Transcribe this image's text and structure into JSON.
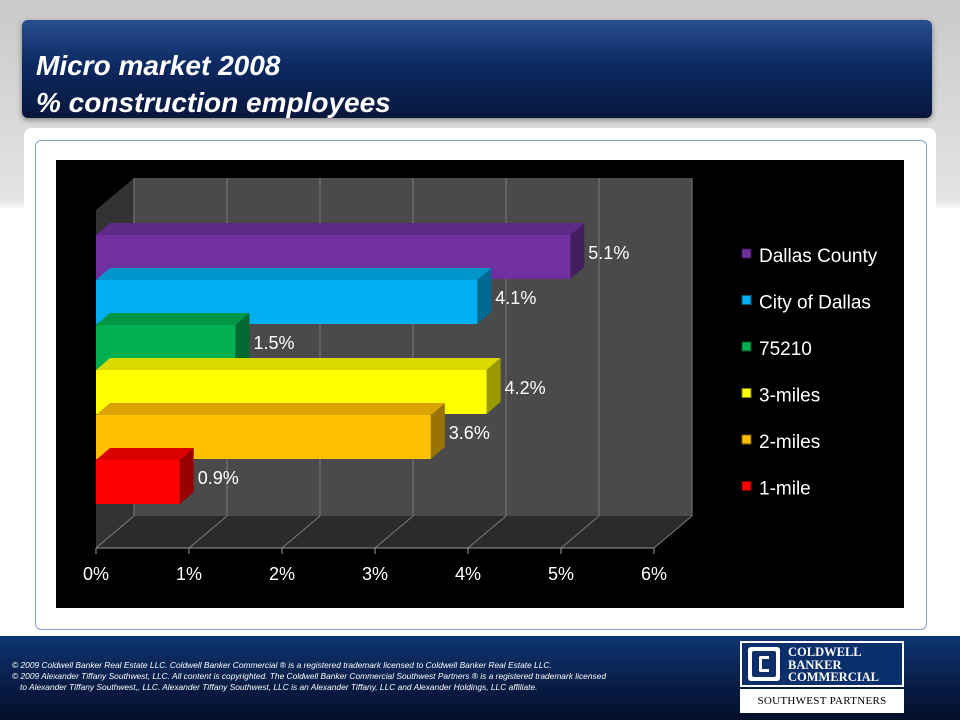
{
  "slide": {
    "title_line1": "Micro market 2008",
    "title_line2": "% construction employees"
  },
  "chart_data": {
    "type": "bar",
    "orientation": "horizontal",
    "style": "3d",
    "title": "",
    "xlabel": "",
    "ylabel": "",
    "xlim": [
      0,
      6
    ],
    "x_ticks": [
      "0%",
      "1%",
      "2%",
      "3%",
      "4%",
      "5%",
      "6%"
    ],
    "grid": true,
    "legend_position": "right",
    "background": "#000000",
    "series": [
      {
        "name": "Dallas County",
        "value": 5.1,
        "label": "5.1%",
        "color": "#7030a0"
      },
      {
        "name": "City of Dallas",
        "value": 4.1,
        "label": "4.1%",
        "color": "#00b0f0"
      },
      {
        "name": "75210",
        "value": 1.5,
        "label": "1.5%",
        "color": "#00b050"
      },
      {
        "name": "3-miles",
        "value": 4.2,
        "label": "4.2%",
        "color": "#ffff00"
      },
      {
        "name": "2-miles",
        "value": 3.6,
        "label": "3.6%",
        "color": "#ffc000"
      },
      {
        "name": "1-mile",
        "value": 0.9,
        "label": "0.9%",
        "color": "#ff0000"
      }
    ]
  },
  "footer": {
    "line1": "©  2009 Coldwell Banker Real Estate LLC. Coldwell Banker Commercial ® is a registered trademark licensed to Coldwell Banker Real Estate LLC.",
    "line2": "© 2009 Alexander Tiffany Southwest, LLC. All content is copyrighted. The Coldwell Banker Commercial Southwest Partners ® is a registered trademark licensed",
    "line3": "to Alexander Tiffany Southwest,, LLC.  Alexander Tiffany Southwest, LLC is an Alexander Tiffany, LLC and Alexander Holdings, LLC affiliate."
  },
  "logo": {
    "line1": "COLDWELL",
    "line2": "BANKER",
    "line3": "COMMERCIAL",
    "subtitle": "SOUTHWEST PARTNERS"
  },
  "colors": {
    "title_bar": "#0d2a63",
    "footer": "#071c44",
    "chart_wall": "#454545"
  }
}
